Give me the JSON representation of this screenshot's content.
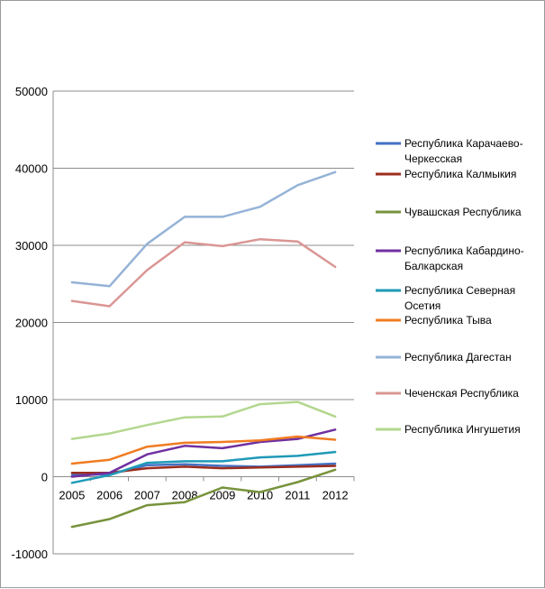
{
  "chart_data": {
    "type": "line",
    "title": "",
    "xlabel": "",
    "ylabel": "",
    "x": [
      "2005",
      "2006",
      "2007",
      "2008",
      "2009",
      "2010",
      "2011",
      "2012"
    ],
    "y_ticks": [
      "50000",
      "40000",
      "30000",
      "20000",
      "10000",
      "0",
      "-10000"
    ],
    "ylim": [
      -10000,
      50000
    ],
    "grid": "horizontal",
    "legend_position": "right",
    "series": [
      {
        "name": "Республика Карачаево-Черкесская",
        "legend_lines": [
          "Республика Карачаево-",
          "Черкесская"
        ],
        "color": "#4472C4",
        "values": [
          200,
          300,
          1500,
          1600,
          1400,
          1300,
          1500,
          1700
        ]
      },
      {
        "name": "Республика Калмыкия",
        "legend_lines": [
          "Республика Калмыкия"
        ],
        "color": "#9B2D1F",
        "values": [
          500,
          500,
          1100,
          1300,
          1100,
          1200,
          1300,
          1400
        ]
      },
      {
        "name": "Чувашская Республика",
        "legend_lines": [
          "Чувашская Республика"
        ],
        "color": "#77933C",
        "values": [
          -6500,
          -5500,
          -3700,
          -3300,
          -1400,
          -2000,
          -700,
          900
        ]
      },
      {
        "name": "Республика Кабардино-Балкарская",
        "legend_lines": [
          " Республика Кабардино-",
          "Балкарская"
        ],
        "color": "#7030A0",
        "values": [
          0,
          500,
          2900,
          4000,
          3700,
          4500,
          4900,
          6100
        ]
      },
      {
        "name": "Республика Северная Осетия",
        "legend_lines": [
          "Республика Северная",
          "Осетия"
        ],
        "color": "#1F9AB8",
        "values": [
          -800,
          200,
          1800,
          2000,
          2000,
          2500,
          2700,
          3200
        ]
      },
      {
        "name": "Республика Тыва",
        "legend_lines": [
          "Республика Тыва"
        ],
        "color": "#F07C22",
        "values": [
          1700,
          2200,
          3900,
          4400,
          4500,
          4700,
          5200,
          4800
        ]
      },
      {
        "name": "Республика Дагестан",
        "legend_lines": [
          "Республика Дагестан"
        ],
        "color": "#95B3D7",
        "values": [
          25200,
          24700,
          30200,
          33700,
          33700,
          35000,
          37800,
          39500
        ]
      },
      {
        "name": "Чеченская Республика",
        "legend_lines": [
          "Чеченская Республика"
        ],
        "color": "#DA9694",
        "values": [
          22800,
          22100,
          26800,
          30400,
          29900,
          30800,
          30500,
          27200
        ]
      },
      {
        "name": "Республика Ингушетия",
        "legend_lines": [
          "Республика Ингушетия"
        ],
        "color": "#B3D78F",
        "values": [
          4900,
          5600,
          6700,
          7700,
          7800,
          9400,
          9700,
          7800
        ]
      }
    ]
  }
}
